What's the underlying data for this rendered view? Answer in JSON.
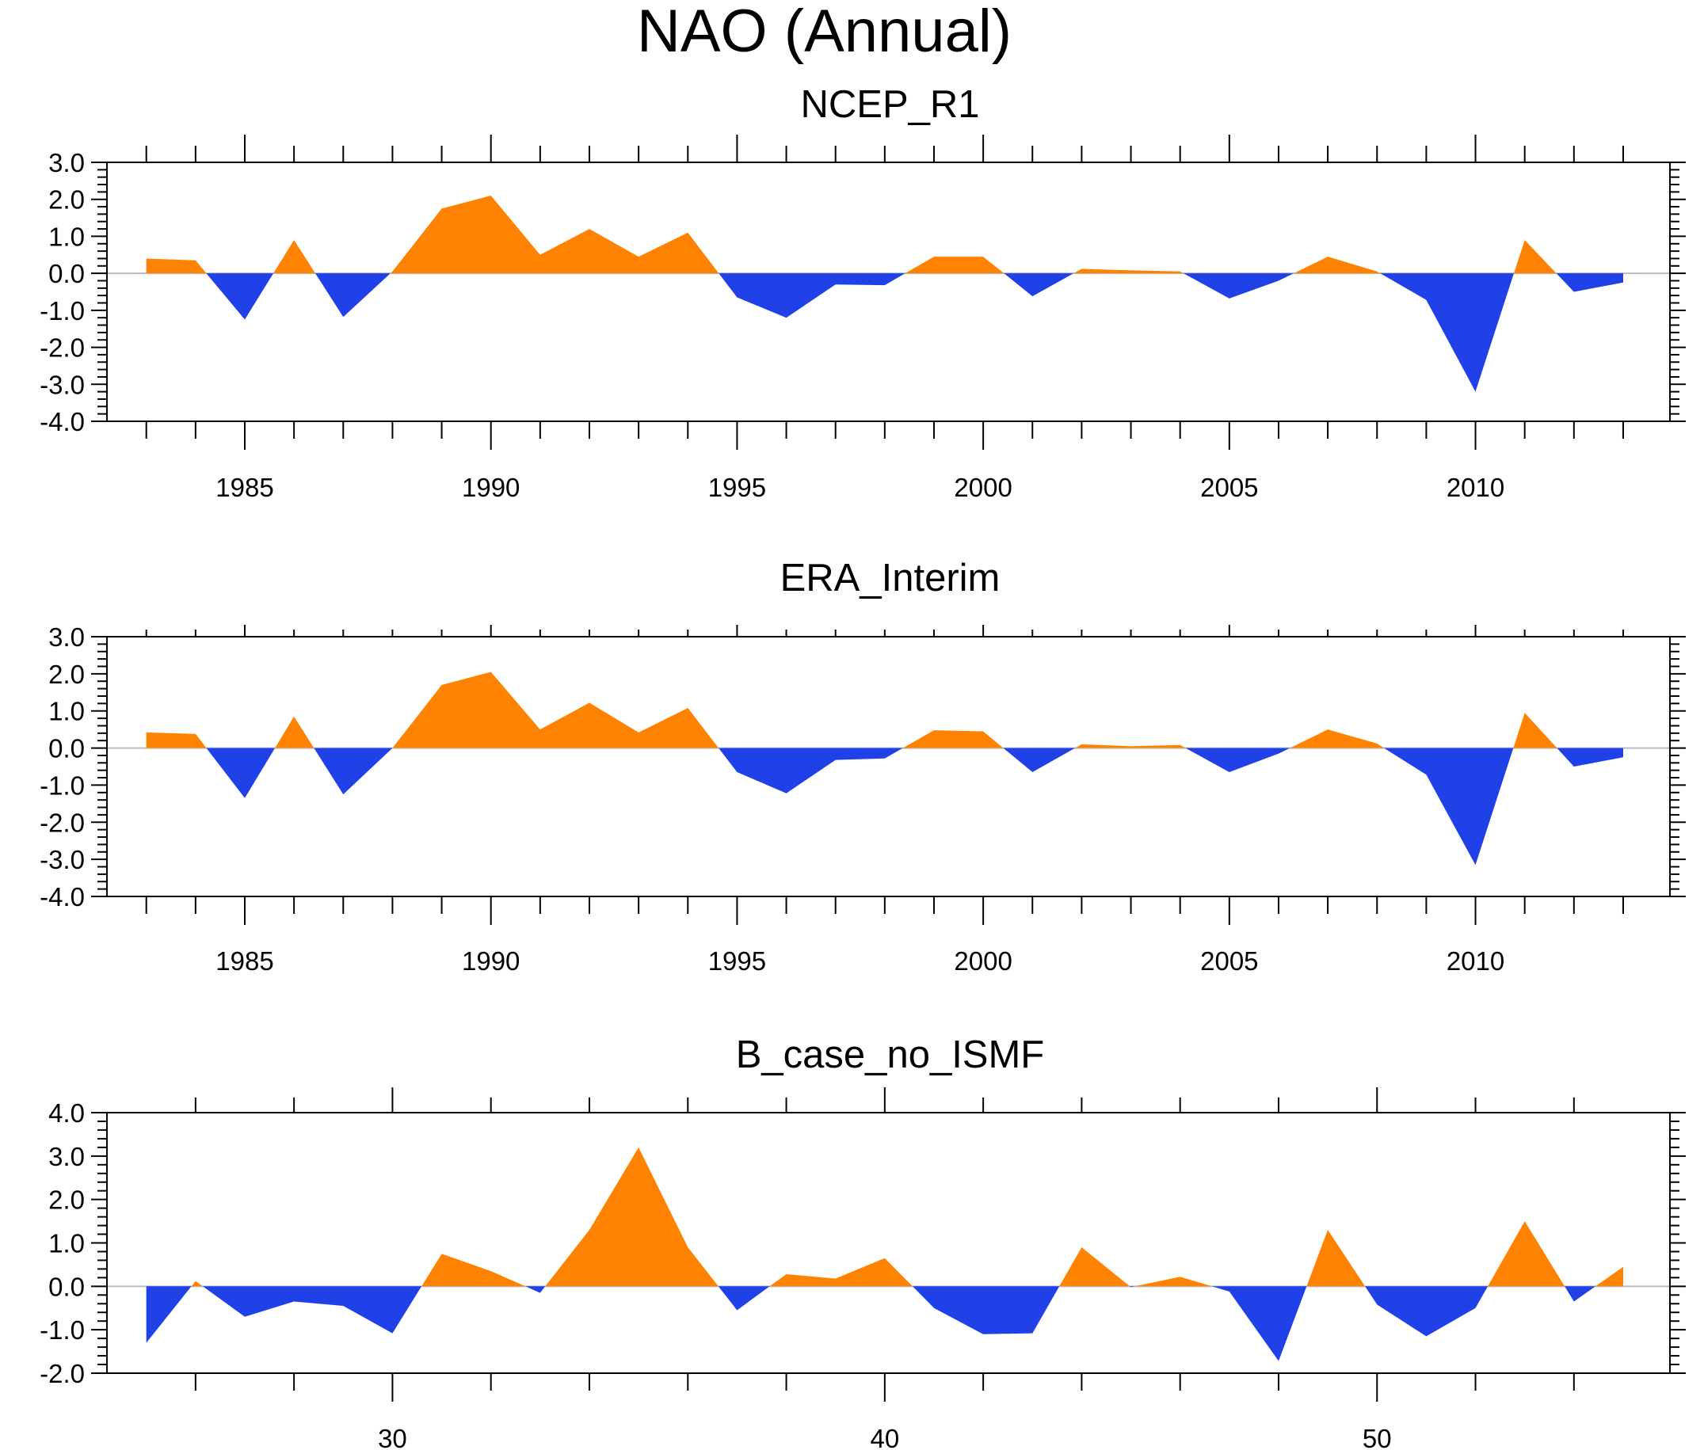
{
  "title": "NAO (Annual)",
  "colors": {
    "positive": "#ff8200",
    "negative": "#2040e8",
    "axis": "#000000",
    "zero_line": "#bbbbbb"
  },
  "chart_data": [
    {
      "type": "area",
      "title": "NCEP_R1",
      "x": [
        1983,
        1984,
        1985,
        1986,
        1987,
        1988,
        1989,
        1990,
        1991,
        1992,
        1993,
        1994,
        1995,
        1996,
        1997,
        1998,
        1999,
        2000,
        2001,
        2002,
        2003,
        2004,
        2005,
        2006,
        2007,
        2008,
        2009,
        2010,
        2011,
        2012,
        2013
      ],
      "values": [
        0.4,
        0.35,
        -1.25,
        0.9,
        -1.18,
        0.05,
        1.75,
        2.1,
        0.5,
        1.2,
        0.45,
        1.1,
        -0.65,
        -1.2,
        -0.3,
        -0.32,
        0.45,
        0.45,
        -0.62,
        0.12,
        0.08,
        0.05,
        -0.68,
        -0.2,
        0.45,
        0.05,
        -0.72,
        -3.2,
        0.9,
        -0.5,
        -0.25
      ],
      "xlim": [
        1982.2,
        2013.95
      ],
      "ylim": [
        -4.0,
        3.0
      ],
      "yticks": [
        3.0,
        2.0,
        1.0,
        0.0,
        -1.0,
        -2.0,
        -3.0,
        -4.0
      ],
      "ytick_labels": [
        "3.0",
        "2.0",
        "1.0",
        "0.0",
        "-1.0",
        "-2.0",
        "-3.0",
        "-4.0"
      ],
      "xticks": [
        1985,
        1990,
        1995,
        2000,
        2005,
        2010
      ],
      "xtick_labels": [
        "1985",
        "1990",
        "1995",
        "2000",
        "2005",
        "2010"
      ],
      "xminor_step": 1
    },
    {
      "type": "area",
      "title": "ERA_Interim",
      "x": [
        1983,
        1984,
        1985,
        1986,
        1987,
        1988,
        1989,
        1990,
        1991,
        1992,
        1993,
        1994,
        1995,
        1996,
        1997,
        1998,
        1999,
        2000,
        2001,
        2002,
        2003,
        2004,
        2005,
        2006,
        2007,
        2008,
        2009,
        2010,
        2011,
        2012,
        2013
      ],
      "values": [
        0.42,
        0.38,
        -1.35,
        0.85,
        -1.25,
        0.0,
        1.7,
        2.05,
        0.5,
        1.22,
        0.42,
        1.08,
        -0.65,
        -1.22,
        -0.32,
        -0.28,
        0.48,
        0.45,
        -0.65,
        0.1,
        0.05,
        0.08,
        -0.65,
        -0.15,
        0.5,
        0.12,
        -0.72,
        -3.15,
        0.95,
        -0.5,
        -0.25
      ],
      "xlim": [
        1982.2,
        2013.95
      ],
      "ylim": [
        -4.0,
        3.0
      ],
      "yticks": [
        3.0,
        2.0,
        1.0,
        0.0,
        -1.0,
        -2.0,
        -3.0,
        -4.0
      ],
      "ytick_labels": [
        "3.0",
        "2.0",
        "1.0",
        "0.0",
        "-1.0",
        "-2.0",
        "-3.0",
        "-4.0"
      ],
      "xticks": [
        1985,
        1990,
        1995,
        2000,
        2005,
        2010
      ],
      "xtick_labels": [
        "1985",
        "1990",
        "1995",
        "2000",
        "2005",
        "2010"
      ],
      "xminor_step": 1
    },
    {
      "type": "area",
      "title": "B_case_no_ISMF",
      "x": [
        25,
        26,
        27,
        28,
        29,
        30,
        31,
        32,
        33,
        34,
        35,
        36,
        37,
        38,
        39,
        40,
        41,
        42,
        43,
        44,
        45,
        46,
        47,
        48,
        49,
        50,
        51,
        52,
        53,
        54,
        55
      ],
      "values": [
        -1.3,
        0.12,
        -0.7,
        -0.35,
        -0.45,
        -1.08,
        0.75,
        0.35,
        -0.15,
        1.3,
        3.2,
        0.9,
        -0.55,
        0.28,
        0.18,
        0.65,
        -0.5,
        -1.1,
        -1.08,
        0.9,
        -0.02,
        0.22,
        -0.12,
        -1.72,
        1.3,
        -0.42,
        -1.15,
        -0.5,
        1.5,
        -0.35,
        0.45
      ],
      "xlim": [
        24.2,
        55.95
      ],
      "ylim": [
        -2.0,
        4.0
      ],
      "yticks": [
        4.0,
        3.0,
        2.0,
        1.0,
        0.0,
        -1.0,
        -2.0
      ],
      "ytick_labels": [
        "4.0",
        "3.0",
        "2.0",
        "1.0",
        "0.0",
        "-1.0",
        "-2.0"
      ],
      "xticks": [
        30,
        40,
        50
      ],
      "xtick_labels": [
        "30",
        "40",
        "50"
      ],
      "xminor_step": 2
    }
  ]
}
